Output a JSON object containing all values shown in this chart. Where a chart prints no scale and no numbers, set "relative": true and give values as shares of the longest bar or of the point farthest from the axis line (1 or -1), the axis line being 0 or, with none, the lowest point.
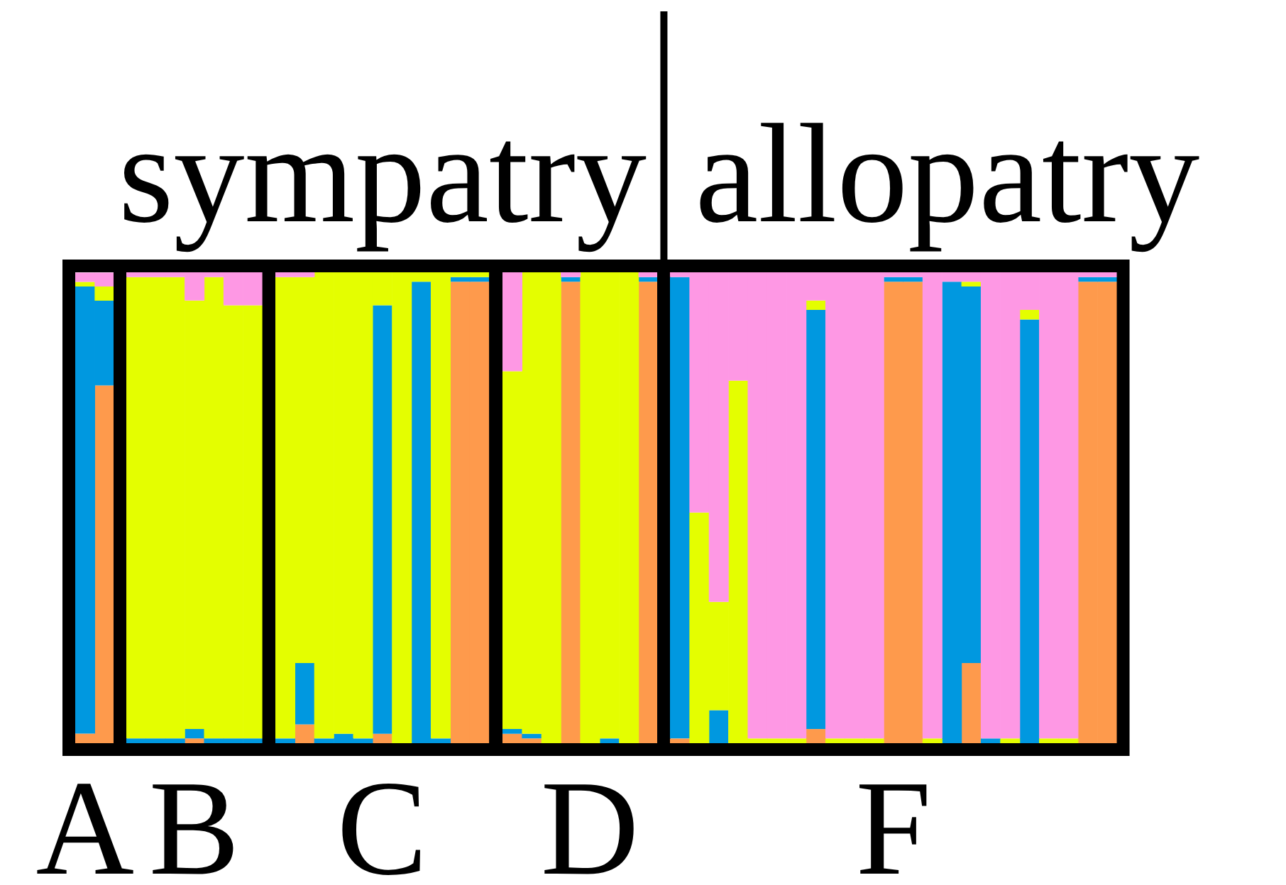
{
  "chart_data": [
    {
      "type": "bar",
      "stacked": true,
      "relative": true,
      "categories": [
        "A",
        null
      ],
      "series": [
        {
          "color": "#fe9a4c",
          "values": [
            0.02,
            0.76
          ]
        },
        {
          "color": "#0098e0",
          "values": [
            0.95,
            0.18
          ]
        },
        {
          "color": "#e4fe00",
          "values": [
            0.01,
            0.03
          ]
        },
        {
          "color": "#fe98e4",
          "values": [
            0.02,
            0.03
          ]
        }
      ]
    },
    {
      "type": "bar",
      "stacked": true,
      "relative": true,
      "categories": [
        null,
        null,
        null,
        "B",
        null,
        null,
        null
      ],
      "series": [
        {
          "color": "#fe9a4c",
          "values": [
            0,
            0,
            0,
            0.01,
            0,
            0,
            0
          ]
        },
        {
          "color": "#0098e0",
          "values": [
            0.01,
            0.01,
            0.01,
            0.02,
            0.01,
            0.01,
            0.01
          ]
        },
        {
          "color": "#e4fe00",
          "values": [
            0.98,
            0.98,
            0.98,
            0.91,
            0.98,
            0.92,
            0.92
          ]
        },
        {
          "color": "#fe98e4",
          "values": [
            0.01,
            0.01,
            0.01,
            0.06,
            0.01,
            0.07,
            0.07
          ]
        }
      ]
    },
    {
      "type": "bar",
      "stacked": true,
      "relative": true,
      "title": "sympatry",
      "categories": [
        null,
        null,
        null,
        null,
        null,
        "C",
        null,
        null,
        null,
        null,
        null
      ],
      "series": [
        {
          "color": "#fe9a4c",
          "values": [
            0,
            0.04,
            0,
            0,
            0,
            0.02,
            0,
            0,
            0,
            0.98,
            0.98
          ]
        },
        {
          "color": "#0098e0",
          "values": [
            0.01,
            0.13,
            0.01,
            0.02,
            0.01,
            0.91,
            0,
            0.98,
            0.01,
            0.01,
            0.01
          ]
        },
        {
          "color": "#e4fe00",
          "values": [
            0.98,
            0.82,
            0.99,
            0.98,
            0.99,
            0.07,
            1,
            0.02,
            0.99,
            0.01,
            0.01
          ]
        },
        {
          "color": "#fe98e4",
          "values": [
            0.01,
            0.01,
            0,
            0,
            0,
            0,
            0,
            0,
            0,
            0,
            0
          ]
        }
      ]
    },
    {
      "type": "bar",
      "stacked": true,
      "relative": true,
      "categories": [
        null,
        null,
        null,
        null,
        "D",
        null,
        null,
        null
      ],
      "series": [
        {
          "color": "#fe9a4c",
          "values": [
            0.02,
            0.01,
            0,
            0.98,
            0,
            0,
            0,
            0.98
          ]
        },
        {
          "color": "#0098e0",
          "values": [
            0.01,
            0.01,
            0,
            0.01,
            0,
            0.01,
            0,
            0.01
          ]
        },
        {
          "color": "#e4fe00",
          "values": [
            0.76,
            0.98,
            1,
            0,
            1,
            0.99,
            1,
            0
          ]
        },
        {
          "color": "#fe98e4",
          "values": [
            0.21,
            0,
            0,
            0.01,
            0,
            0,
            0,
            0.01
          ]
        }
      ]
    },
    {
      "type": "bar",
      "stacked": true,
      "relative": true,
      "title": "allopatry",
      "categories": [
        null,
        null,
        null,
        null,
        null,
        null,
        null,
        null,
        null,
        null,
        null,
        "F",
        null,
        null,
        null,
        null,
        null,
        null,
        null,
        null,
        null,
        null,
        null
      ],
      "series": [
        {
          "color": "#fe9a4c",
          "values": [
            0.01,
            0,
            0,
            0,
            0,
            0,
            0,
            0.03,
            0,
            0,
            0,
            0.98,
            0.98,
            0,
            0,
            0.17,
            0,
            0,
            0,
            0,
            0,
            0.98,
            0.98
          ]
        },
        {
          "color": "#0098e0",
          "values": [
            0.98,
            0,
            0.07,
            0,
            0,
            0,
            0,
            0.89,
            0,
            0,
            0,
            0.01,
            0.01,
            0,
            0.98,
            0.8,
            0.01,
            0,
            0.9,
            0,
            0,
            0.01,
            0.01
          ]
        },
        {
          "color": "#e4fe00",
          "values": [
            0,
            0.49,
            0.23,
            0.77,
            0.01,
            0.01,
            0.01,
            0.02,
            0.01,
            0.01,
            0.01,
            0,
            0,
            0.01,
            0,
            0.01,
            0,
            0.01,
            0.02,
            0.01,
            0.01,
            0,
            0
          ]
        },
        {
          "color": "#fe98e4",
          "values": [
            0.01,
            0.51,
            0.7,
            0.23,
            0.99,
            0.99,
            0.99,
            0.06,
            0.99,
            0.99,
            0.99,
            0.01,
            0.01,
            0.99,
            0.02,
            0.02,
            0.99,
            0.99,
            0.08,
            0.99,
            0.99,
            0.01,
            0.01
          ]
        }
      ]
    }
  ]
}
